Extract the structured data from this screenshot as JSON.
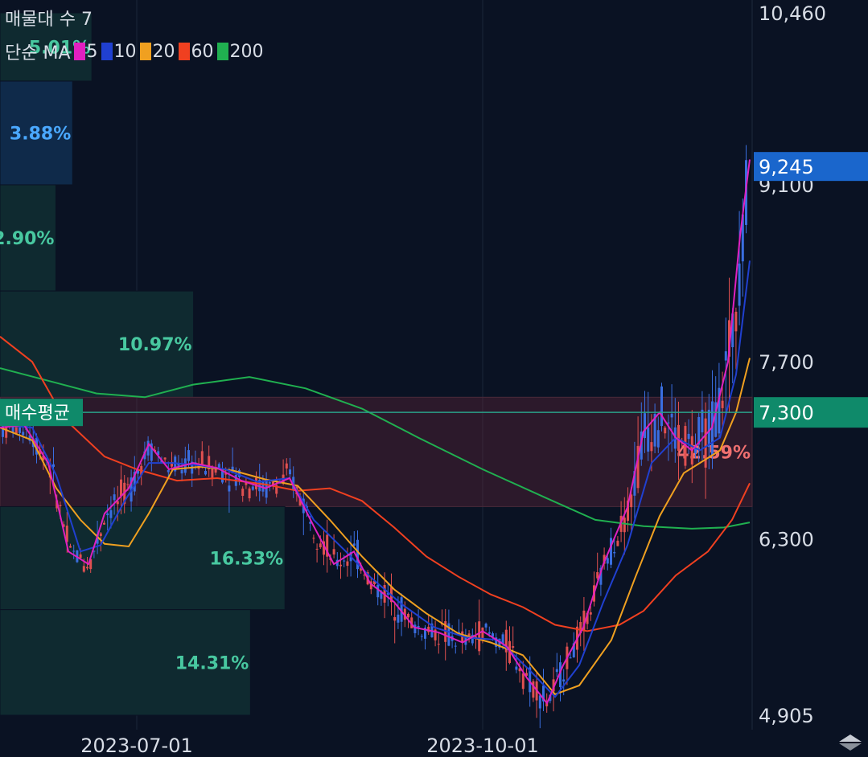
{
  "header": {
    "title": "매물대 수 7",
    "ma_prefix": "단순 MA",
    "ma_items": [
      {
        "label": "5",
        "color": "#e020c0"
      },
      {
        "label": "10",
        "color": "#2040d0"
      },
      {
        "label": "20",
        "color": "#f0a020"
      },
      {
        "label": "60",
        "color": "#f04020"
      },
      {
        "label": "200",
        "color": "#20b050"
      }
    ]
  },
  "chart_data": {
    "type": "candlestick",
    "x_labels": [
      "2023-07-01",
      "2023-10-01"
    ],
    "y_ticks": [
      "10,460",
      "9,100",
      "7,700",
      "6,300",
      "4,905"
    ],
    "y_values": [
      10460,
      9100,
      7700,
      6300,
      4905
    ],
    "current_price": {
      "label": "9,245",
      "value": 9245,
      "color": "#1a66cc"
    },
    "avg_buy": {
      "label": "매수평균",
      "value_label": "7,300",
      "value": 7300,
      "color": "#0f8a6a"
    },
    "volume_profile": [
      {
        "label": "5.01%",
        "low": 9920,
        "high": 10460,
        "color": "#48c8a0"
      },
      {
        "label": "3.88%",
        "low": 9100,
        "high": 9920,
        "color": "#4aa8ff"
      },
      {
        "label": "2.90%",
        "low": 8260,
        "high": 9100,
        "color": "#48c8a0"
      },
      {
        "label": "10.97%",
        "low": 7420,
        "high": 8260,
        "color": "#48c8a0"
      },
      {
        "label": "42.59%",
        "low": 6555,
        "high": 7420,
        "color": "#f07070"
      },
      {
        "label": "16.33%",
        "low": 5740,
        "high": 6555,
        "color": "#48c8a0"
      },
      {
        "label": "14.31%",
        "low": 4905,
        "high": 5740,
        "color": "#48c8a0"
      }
    ],
    "ma_lines": {
      "ma20": [
        [
          0,
          7180
        ],
        [
          40,
          7080
        ],
        [
          70,
          6700
        ],
        [
          100,
          6450
        ],
        [
          130,
          6260
        ],
        [
          160,
          6240
        ],
        [
          185,
          6500
        ],
        [
          215,
          6850
        ],
        [
          250,
          6870
        ],
        [
          290,
          6840
        ],
        [
          330,
          6770
        ],
        [
          370,
          6720
        ],
        [
          410,
          6450
        ],
        [
          450,
          6160
        ],
        [
          490,
          5900
        ],
        [
          530,
          5710
        ],
        [
          570,
          5550
        ],
        [
          610,
          5480
        ],
        [
          650,
          5380
        ],
        [
          690,
          5070
        ],
        [
          720,
          5140
        ],
        [
          760,
          5500
        ],
        [
          790,
          6000
        ],
        [
          820,
          6480
        ],
        [
          850,
          6820
        ],
        [
          870,
          6900
        ],
        [
          895,
          7000
        ],
        [
          915,
          7300
        ],
        [
          932,
          7730
        ]
      ],
      "ma60": [
        [
          0,
          7900
        ],
        [
          40,
          7700
        ],
        [
          80,
          7250
        ],
        [
          130,
          6950
        ],
        [
          170,
          6850
        ],
        [
          220,
          6760
        ],
        [
          270,
          6780
        ],
        [
          330,
          6730
        ],
        [
          370,
          6680
        ],
        [
          410,
          6700
        ],
        [
          450,
          6600
        ],
        [
          490,
          6390
        ],
        [
          530,
          6160
        ],
        [
          570,
          6000
        ],
        [
          610,
          5860
        ],
        [
          650,
          5760
        ],
        [
          690,
          5620
        ],
        [
          730,
          5570
        ],
        [
          770,
          5620
        ],
        [
          800,
          5730
        ],
        [
          840,
          6010
        ],
        [
          880,
          6200
        ],
        [
          910,
          6450
        ],
        [
          932,
          6740
        ]
      ],
      "ma200": [
        [
          0,
          7650
        ],
        [
          60,
          7550
        ],
        [
          120,
          7450
        ],
        [
          180,
          7420
        ],
        [
          240,
          7520
        ],
        [
          310,
          7580
        ],
        [
          380,
          7490
        ],
        [
          450,
          7330
        ],
        [
          520,
          7100
        ],
        [
          600,
          6850
        ],
        [
          680,
          6620
        ],
        [
          740,
          6450
        ],
        [
          800,
          6400
        ],
        [
          860,
          6380
        ],
        [
          900,
          6390
        ],
        [
          932,
          6430
        ]
      ],
      "ma5": [
        [
          0,
          7180
        ],
        [
          30,
          7200
        ],
        [
          60,
          6900
        ],
        [
          85,
          6200
        ],
        [
          110,
          6100
        ],
        [
          130,
          6500
        ],
        [
          160,
          6700
        ],
        [
          185,
          7050
        ],
        [
          210,
          6850
        ],
        [
          240,
          6900
        ],
        [
          270,
          6860
        ],
        [
          300,
          6760
        ],
        [
          330,
          6700
        ],
        [
          360,
          6780
        ],
        [
          390,
          6400
        ],
        [
          415,
          6100
        ],
        [
          440,
          6200
        ],
        [
          460,
          5950
        ],
        [
          490,
          5800
        ],
        [
          515,
          5600
        ],
        [
          545,
          5560
        ],
        [
          575,
          5480
        ],
        [
          600,
          5570
        ],
        [
          630,
          5450
        ],
        [
          655,
          5200
        ],
        [
          680,
          5000
        ],
        [
          700,
          5300
        ],
        [
          725,
          5600
        ],
        [
          750,
          6100
        ],
        [
          780,
          6550
        ],
        [
          800,
          7150
        ],
        [
          820,
          7300
        ],
        [
          840,
          7100
        ],
        [
          860,
          7000
        ],
        [
          885,
          7180
        ],
        [
          905,
          7700
        ],
        [
          920,
          8700
        ],
        [
          932,
          9300
        ]
      ],
      "ma10": [
        [
          0,
          7200
        ],
        [
          40,
          7180
        ],
        [
          70,
          6800
        ],
        [
          100,
          6200
        ],
        [
          125,
          6250
        ],
        [
          155,
          6600
        ],
        [
          185,
          6900
        ],
        [
          215,
          6900
        ],
        [
          250,
          6880
        ],
        [
          280,
          6850
        ],
        [
          320,
          6750
        ],
        [
          360,
          6780
        ],
        [
          390,
          6450
        ],
        [
          430,
          6200
        ],
        [
          460,
          6000
        ],
        [
          500,
          5780
        ],
        [
          540,
          5600
        ],
        [
          580,
          5520
        ],
        [
          620,
          5500
        ],
        [
          660,
          5250
        ],
        [
          690,
          5050
        ],
        [
          720,
          5300
        ],
        [
          750,
          5800
        ],
        [
          780,
          6250
        ],
        [
          810,
          6900
        ],
        [
          840,
          7100
        ],
        [
          870,
          7000
        ],
        [
          895,
          7100
        ],
        [
          915,
          7600
        ],
        [
          932,
          8500
        ]
      ]
    }
  }
}
